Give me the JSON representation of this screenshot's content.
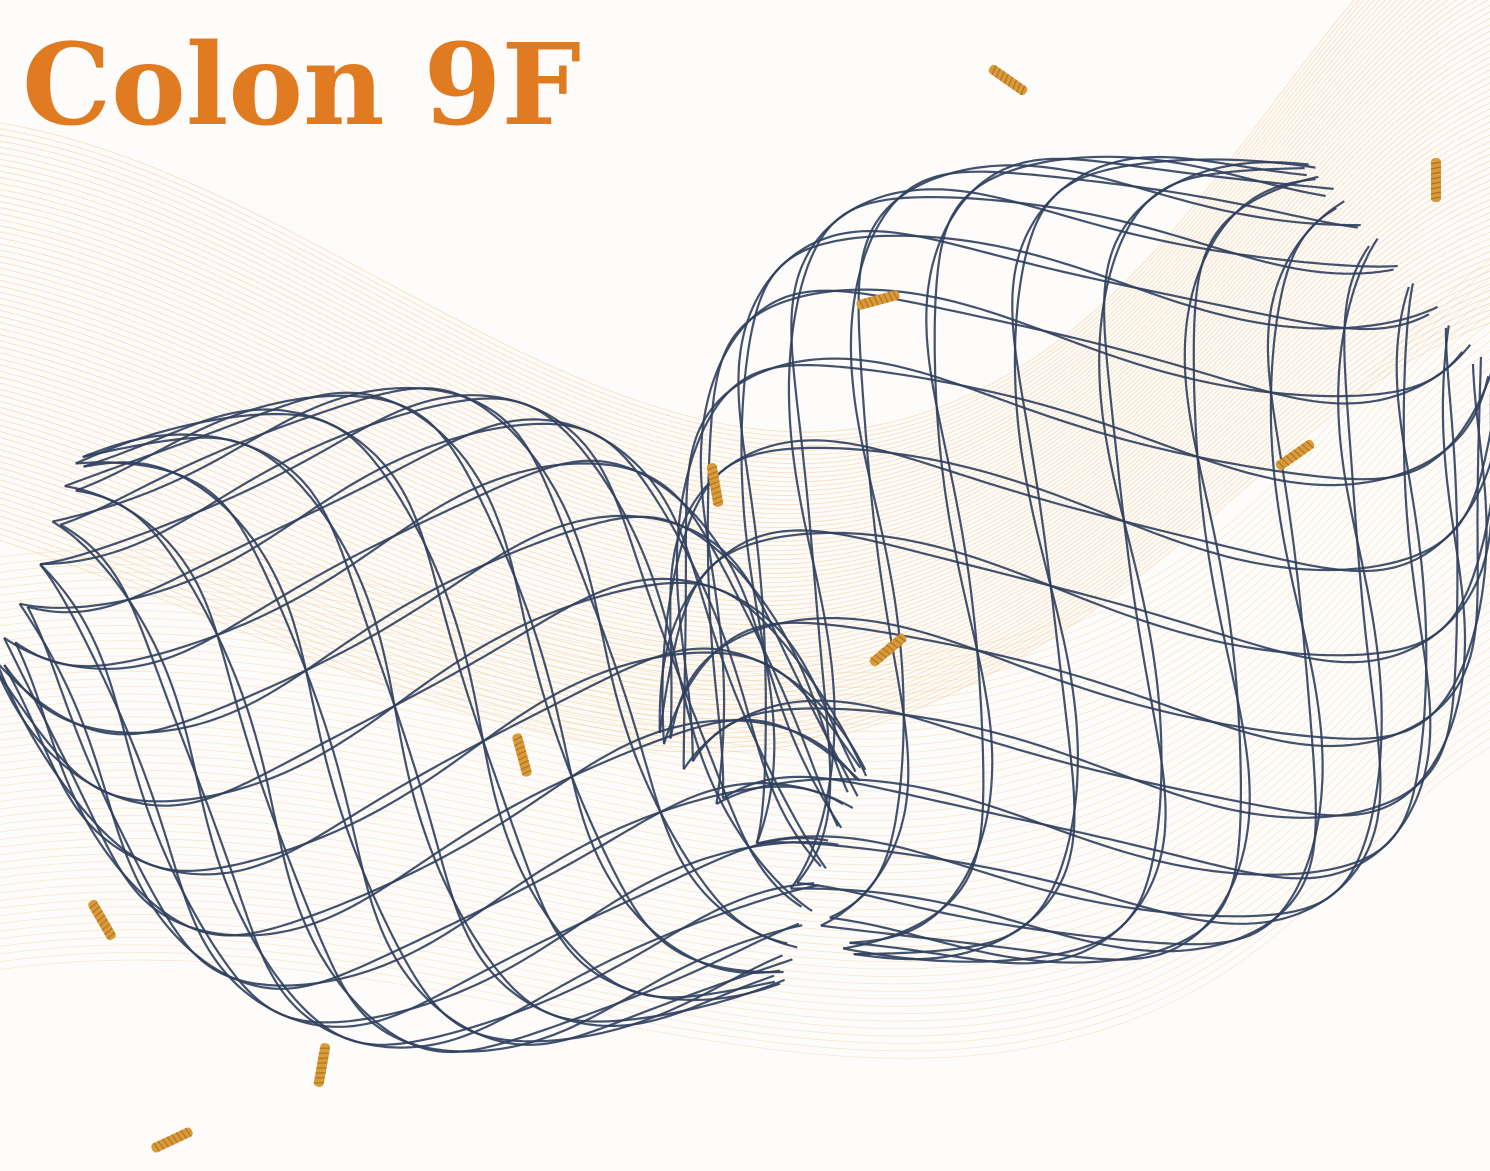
{
  "title": "Colon 9F",
  "colors": {
    "title": "#e07b22",
    "wire": "#2f3f5e",
    "marker": "#d99a3a",
    "wave": "#f0c98f"
  },
  "illustration": "stent-mesh"
}
